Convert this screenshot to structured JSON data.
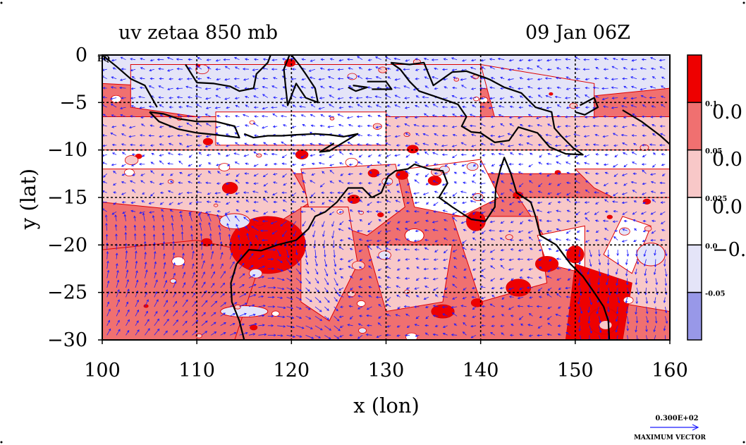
{
  "chart_data": {
    "type": "heatmap",
    "title": "uv zetaa 850 mb",
    "time": "09 Jan 06Z",
    "xlabel": "x (lon)",
    "ylabel": "y (lat)",
    "xlim": [
      100,
      160
    ],
    "ylim": [
      -30,
      0
    ],
    "x_ticks": [
      "100",
      "110",
      "120",
      "130",
      "140",
      "150",
      "160"
    ],
    "y_ticks": [
      "0",
      "−5",
      "−10",
      "−15",
      "−20",
      "−25",
      "−30"
    ],
    "x_tick_values": [
      100,
      110,
      120,
      130,
      140,
      150,
      160
    ],
    "y_tick_values": [
      0,
      -5,
      -10,
      -15,
      -20,
      -25,
      -30
    ],
    "eq_label": "EQ",
    "grid": true,
    "colorbar": {
      "levels": [
        "0.1",
        "0.05",
        "0.025",
        "0.0",
        "-0.05"
      ],
      "big_labels": [
        "0.0",
        "0.0",
        "0.0",
        "−0."
      ],
      "colors": [
        "#ee0000",
        "#f07070",
        "#f8c8c8",
        "#ffffff",
        "#e4e4f8",
        "#9898e8"
      ]
    },
    "vector_legend": {
      "value": "0.300E+02",
      "label": "MAXIMUM VECTOR"
    },
    "colors": {
      "strong_pos": "#ee0000",
      "mid_pos": "#f07070",
      "weak_pos": "#f8c8c8",
      "neutral": "#ffffff",
      "weak_neg": "#e4e4f8",
      "strong_neg": "#9898e8",
      "contour": "#dd0000",
      "vector": "#1a1aff"
    }
  }
}
